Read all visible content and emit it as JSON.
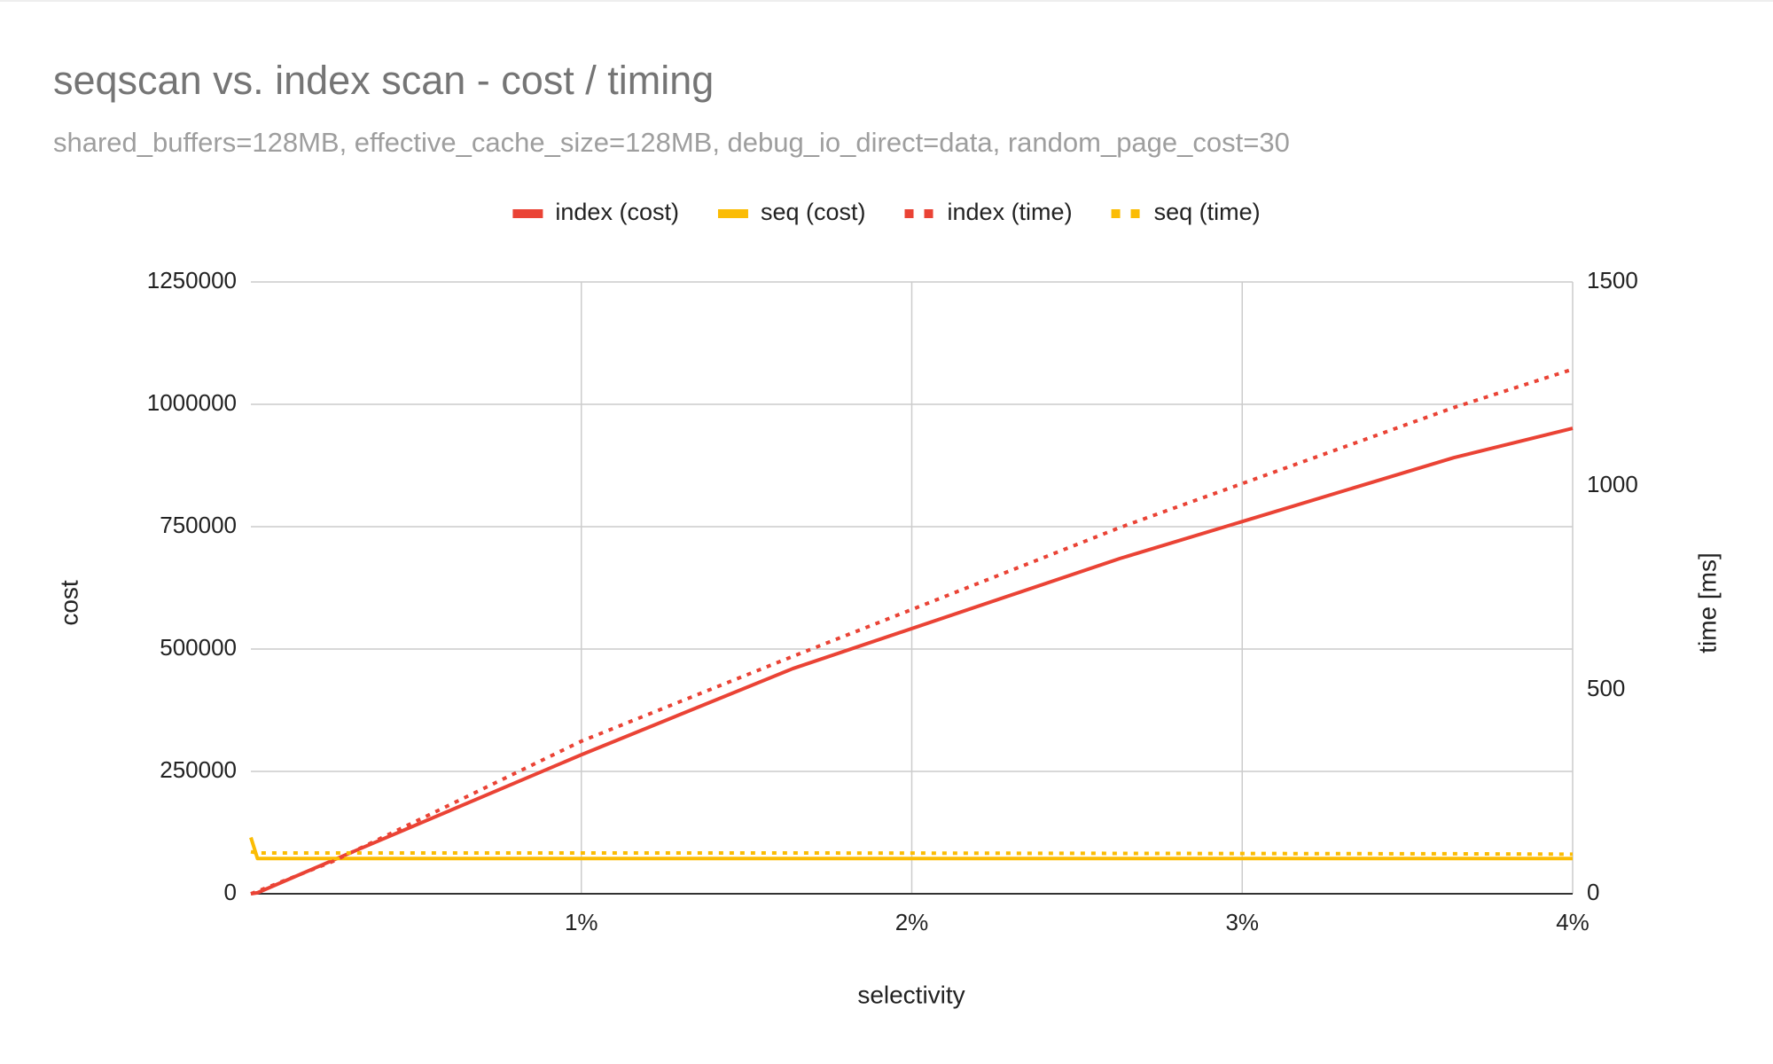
{
  "chart_data": {
    "type": "line",
    "title": "seqscan vs. index scan - cost / timing",
    "subtitle": "shared_buffers=128MB, effective_cache_size=128MB, debug_io_direct=data, random_page_cost=30",
    "x_label": "selectivity",
    "y_label": "cost",
    "y2_label": "time [ms]",
    "x": [
      0,
      0.02,
      0.25,
      1,
      1.64,
      2.63,
      3.64,
      4
    ],
    "xlim": [
      0,
      4
    ],
    "xticks": [
      {
        "value": 1,
        "label": "1%"
      },
      {
        "value": 2,
        "label": "2%"
      },
      {
        "value": 3,
        "label": "3%"
      },
      {
        "value": 4,
        "label": "4%"
      }
    ],
    "ylim": [
      0,
      1250000
    ],
    "yticks": [
      0,
      250000,
      500000,
      750000,
      1000000,
      1250000
    ],
    "y2lim": [
      0,
      1500
    ],
    "y2ticks": [
      0,
      500,
      1000,
      1500
    ],
    "grid": true,
    "legend": "top",
    "series": [
      {
        "name": "index (cost)",
        "color": "#ea4335",
        "style": "solid",
        "axis": "y",
        "values": [
          0,
          2000,
          69000,
          284000,
          460000,
          685000,
          891000,
          951000
        ]
      },
      {
        "name": "seq (cost)",
        "color": "#fbbc04",
        "style": "solid",
        "axis": "y",
        "values": [
          115000,
          72000,
          72000,
          72000,
          72000,
          72000,
          72000,
          72000
        ]
      },
      {
        "name": "index (time)",
        "color": "#ea4335",
        "style": "dotted",
        "axis": "y2",
        "values": [
          0,
          6,
          80,
          374,
          582,
          898,
          1192,
          1286
        ]
      },
      {
        "name": "seq (time)",
        "color": "#fbbc04",
        "style": "dotted",
        "axis": "y2",
        "values": [
          103,
          100,
          100,
          100,
          100,
          99,
          98,
          97
        ]
      }
    ]
  }
}
